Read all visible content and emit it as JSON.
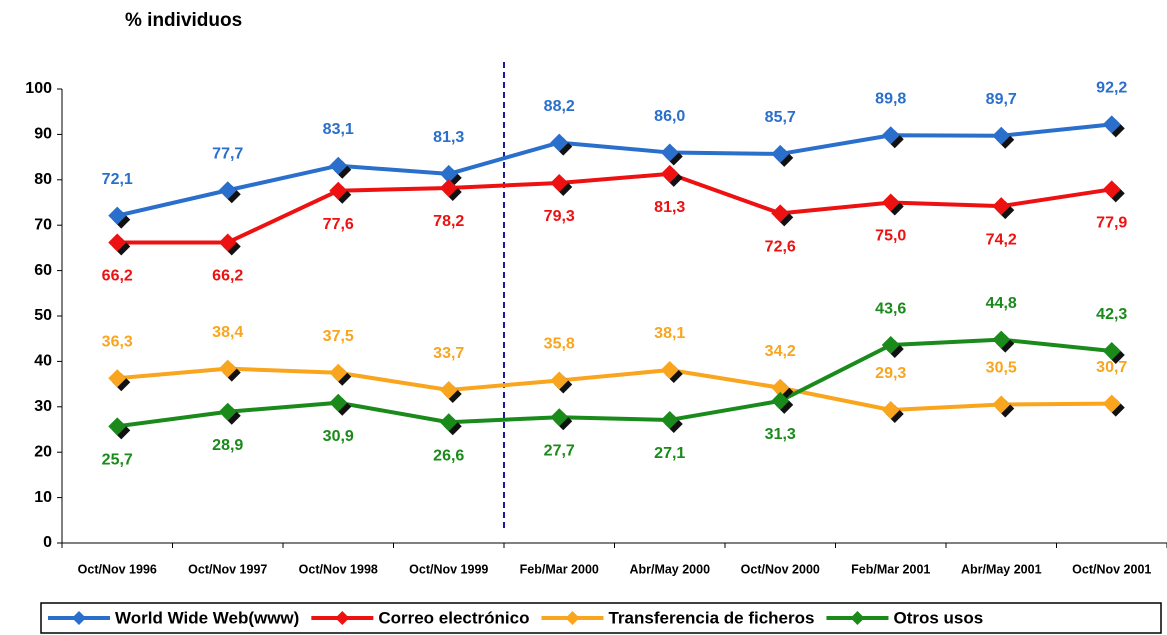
{
  "chart_data": {
    "type": "line",
    "y_label": "% individuos",
    "categories": [
      "Oct/Nov 1996",
      "Oct/Nov 1997",
      "Oct/Nov 1998",
      "Oct/Nov 1999",
      "Feb/Mar 2000",
      "Abr/May 2000",
      "Oct/Nov 2000",
      "Feb/Mar 2001",
      "Abr/May 2001",
      "Oct/Nov 2001"
    ],
    "series": [
      {
        "name": "World Wide Web(www)",
        "color": "#2a6fcc",
        "values": [
          72.1,
          77.7,
          83.1,
          81.3,
          88.2,
          86.0,
          85.7,
          89.8,
          89.7,
          92.2
        ],
        "value_labels": [
          "72,1",
          "77,7",
          "83,1",
          "81,3",
          "88,2",
          "86,0",
          "85,7",
          "89,8",
          "89,7",
          "92,2"
        ]
      },
      {
        "name": "Correo electrónico",
        "color": "#ee1111",
        "values": [
          66.2,
          66.2,
          77.6,
          78.2,
          79.3,
          81.3,
          72.6,
          75.0,
          74.2,
          77.9
        ],
        "value_labels": [
          "66,2",
          "66,2",
          "77,6",
          "78,2",
          "79,3",
          "81,3",
          "72,6",
          "75,0",
          "74,2",
          "77,9"
        ]
      },
      {
        "name": "Transferencia de ficheros",
        "color": "#f9a51e",
        "values": [
          36.3,
          38.4,
          37.5,
          33.7,
          35.8,
          38.1,
          34.2,
          29.3,
          30.5,
          30.7
        ],
        "value_labels": [
          "36,3",
          "38,4",
          "37,5",
          "33,7",
          "35,8",
          "38,1",
          "34,2",
          "29,3",
          "30,5",
          "30,7"
        ]
      },
      {
        "name": "Otros usos",
        "color": "#1a8a1a",
        "values": [
          25.7,
          28.9,
          30.9,
          26.6,
          27.7,
          27.1,
          31.3,
          43.6,
          44.8,
          42.3
        ],
        "value_labels": [
          "25,7",
          "28,9",
          "30,9",
          "26,6",
          "27,7",
          "27,1",
          "31,3",
          "43,6",
          "44,8",
          "42,3"
        ]
      }
    ],
    "ylim": [
      0,
      100
    ],
    "yticks": [
      0,
      10,
      20,
      30,
      40,
      50,
      60,
      70,
      80,
      90,
      100
    ],
    "legend": "bottom"
  }
}
